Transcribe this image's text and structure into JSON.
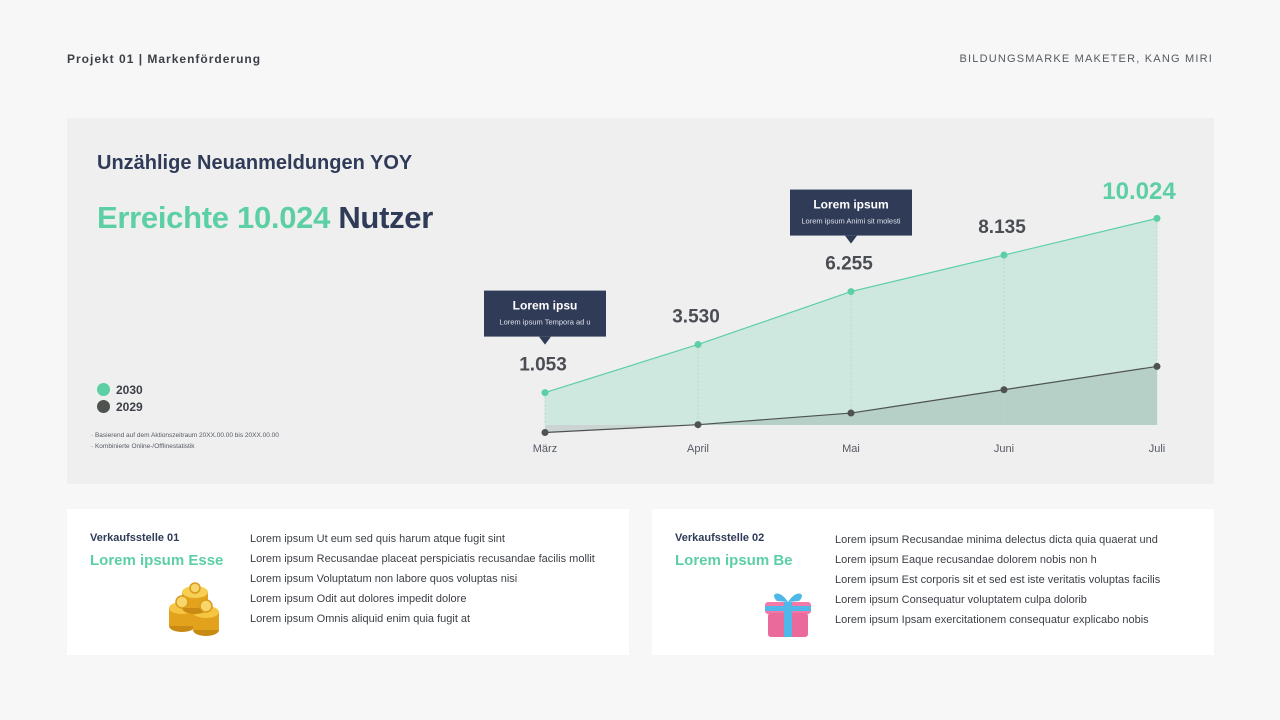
{
  "header": {
    "left": "Projekt 01 | Markenförderung",
    "right": "BILDUNGSMARKE MAKETER, KANG MIRI"
  },
  "panel": {
    "subtitle": "Unzählige Neuanmeldungen YOY",
    "headline_highlight": "Erreichte 10.024",
    "headline_rest": " Nutzer",
    "notes": [
      "· Basierend auf dem Aktionszeitraum 20XX.00.00 bis 20XX.00.00",
      "· Kombinierte Online-/Offlinestatistik"
    ]
  },
  "colors": {
    "accent": "#5ccfa4",
    "navy": "#2f3b57",
    "series_2030": "#5ccfa4",
    "series_2029": "#4e5350"
  },
  "chart_data": {
    "type": "area",
    "categories": [
      "März",
      "April",
      "Mai",
      "Juni",
      "Juli"
    ],
    "series": [
      {
        "name": "2030",
        "values": [
          1053,
          3530,
          6255,
          8135,
          10024
        ]
      },
      {
        "name": "2029",
        "values": [
          -1000,
          -600,
          0,
          1200,
          2400
        ]
      }
    ],
    "data_labels": [
      "1.053",
      "3.530",
      "6.255",
      "8.135",
      "10.024"
    ],
    "highlight_label_index": 4,
    "ylim": [
      -1800,
      12000
    ],
    "legend": {
      "placement": "left",
      "entries": [
        "2030",
        "2029"
      ]
    },
    "grid": false,
    "callouts": [
      {
        "category_index": 0,
        "title": "Lorem ipsu",
        "text": "Lorem ipsum Tempora ad u"
      },
      {
        "category_index": 2,
        "title": "Lorem ipsum",
        "text": "Lorem ipsum Animi sit molesti"
      }
    ]
  },
  "cards": [
    {
      "title": "Verkaufsstelle 01",
      "subtitle": "Lorem ipsum Esse",
      "icon": "coins-icon",
      "items": [
        "Lorem ipsum Ut eum sed quis harum atque fugit sint",
        "Lorem ipsum Recusandae placeat perspiciatis recusandae facilis mollit",
        "Lorem ipsum Voluptatum non labore quos voluptas nisi",
        "Lorem ipsum Odit aut dolores impedit dolore",
        "Lorem ipsum Omnis aliquid enim quia fugit at"
      ]
    },
    {
      "title": "Verkaufsstelle 02",
      "subtitle": "Lorem ipsum Be",
      "icon": "gift-icon",
      "items": [
        "Lorem ipsum Recusandae minima delectus dicta quia quaerat und",
        "Lorem ipsum Eaque recusandae dolorem nobis non h",
        "Lorem ipsum Est corporis sit et sed est iste veritatis voluptas facilis",
        "Lorem ipsum Consequatur voluptatem culpa dolorib",
        "Lorem ipsum Ipsam exercitationem consequatur explicabo nobis"
      ]
    }
  ]
}
